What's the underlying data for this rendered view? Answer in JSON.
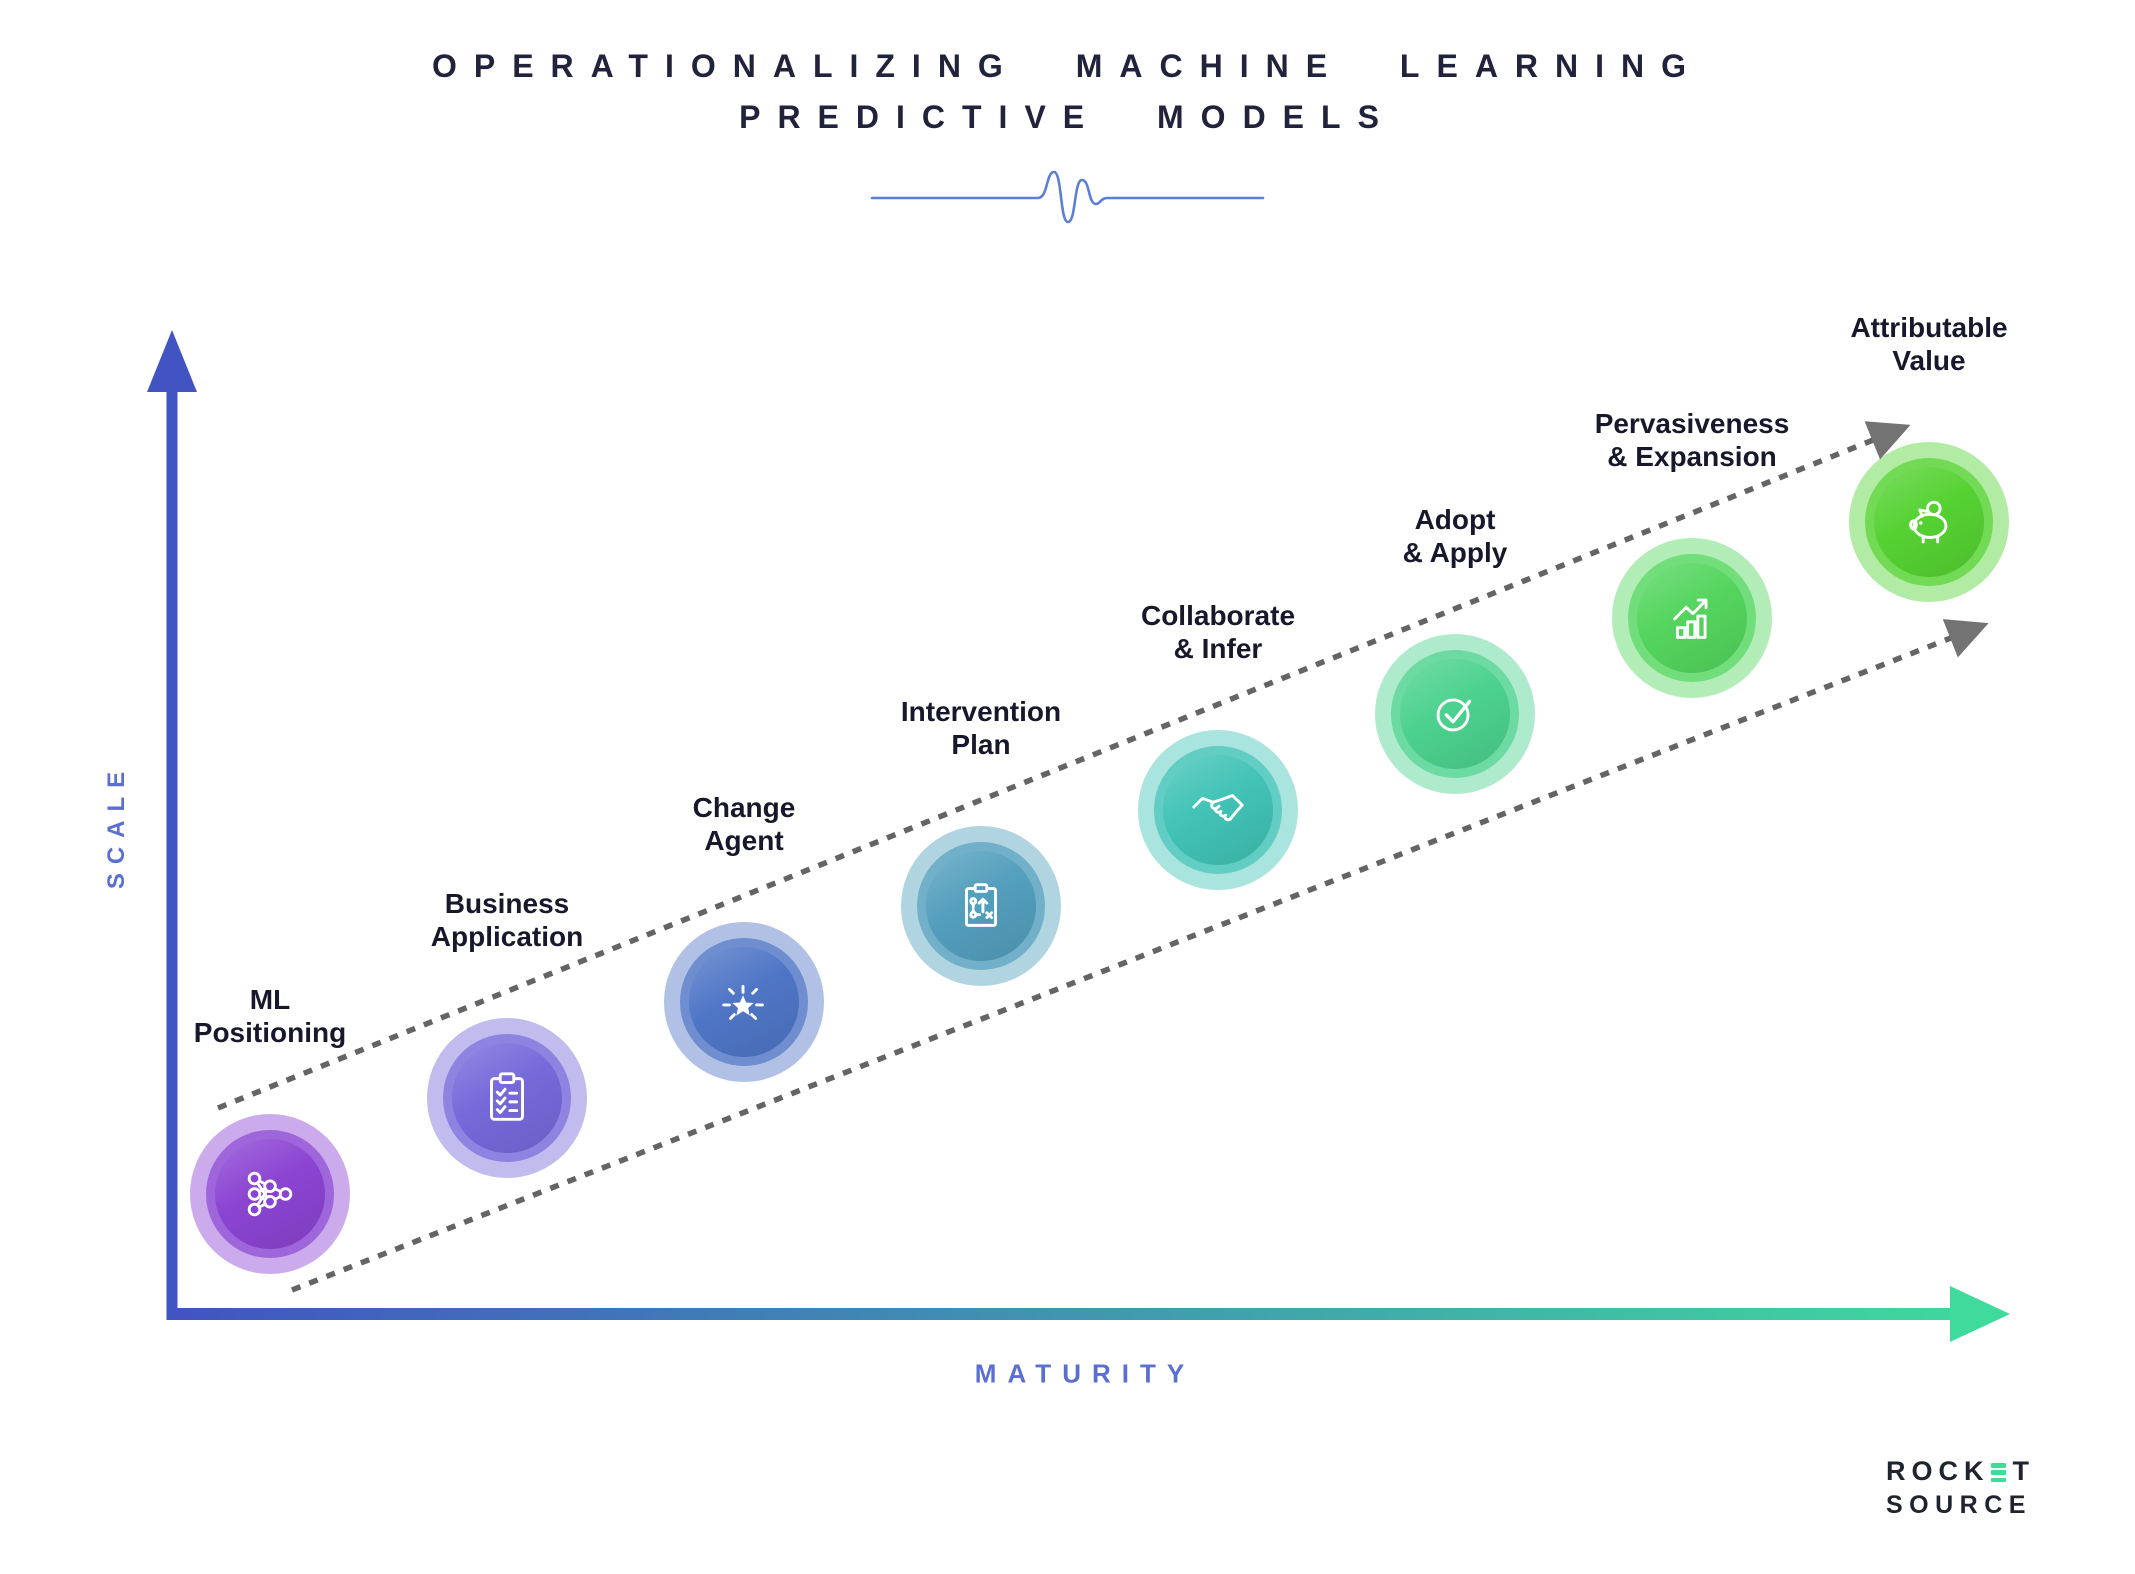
{
  "title": {
    "line1": "OPERATIONALIZING MACHINE LEARNING",
    "line2": "PREDICTIVE MODELS"
  },
  "axes": {
    "y_label": "SCALE",
    "x_label": "MATURITY",
    "label_color": "#5b6fd1",
    "y_color": "#4154c1",
    "x_gradient_start": "#4154c1",
    "x_gradient_end": "#3fdb9d"
  },
  "divider": {
    "color": "#5b7fd7",
    "icon": "pulse-wave-icon"
  },
  "path": {
    "dotted_color": "#646464",
    "arrowhead_color": "#737373"
  },
  "stages": [
    {
      "label_line1": "ML",
      "label_line2": "Positioning",
      "icon": "neural-network-icon",
      "color": "#8b44d2"
    },
    {
      "label_line1": "Business",
      "label_line2": "Application",
      "icon": "clipboard-checklist-icon",
      "color": "#7669da"
    },
    {
      "label_line1": "Change",
      "label_line2": "Agent",
      "icon": "star-burst-icon",
      "color": "#4f76c6"
    },
    {
      "label_line1": "Intervention",
      "label_line2": "Plan",
      "icon": "strategy-plan-icon",
      "color": "#539fbd"
    },
    {
      "label_line1": "Collaborate",
      "label_line2": "& Infer",
      "icon": "handshake-icon",
      "color": "#41c3b6"
    },
    {
      "label_line1": "Adopt",
      "label_line2": "& Apply",
      "icon": "check-circle-icon",
      "color": "#4cd28e"
    },
    {
      "label_line1": "Pervasiveness",
      "label_line2": "& Expansion",
      "icon": "growth-chart-icon",
      "color": "#54d55e"
    },
    {
      "label_line1": "Attributable",
      "label_line2": "Value",
      "icon": "piggy-bank-icon",
      "color": "#55d232"
    }
  ],
  "logo": {
    "line1": "ROCKET",
    "line2": "SOURCE",
    "accent_letter": "E",
    "accent_color": "#3ddc97",
    "text_color": "#20242f"
  }
}
